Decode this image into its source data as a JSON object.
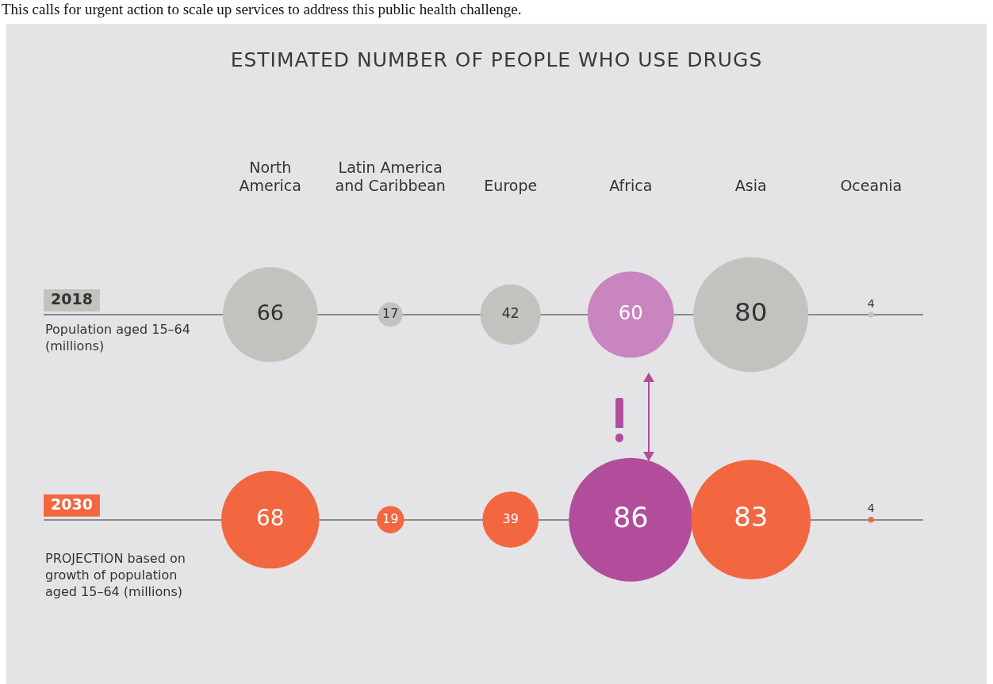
{
  "chart_data": {
    "type": "other",
    "title": "ESTIMATED NUMBER OF PEOPLE WHO USE DRUGS",
    "categories": [
      "North America",
      "Latin America and Caribbean",
      "Europe",
      "Africa",
      "Asia",
      "Oceania"
    ],
    "series": [
      {
        "name": "2018",
        "color": "#c3c2bf",
        "colors": [
          "#c3c2bf",
          "#c3c2bf",
          "#c3c2bf",
          "#c985bd",
          "#c3c2bf",
          "#c3c2bf"
        ],
        "values": [
          66,
          17,
          42,
          60,
          80,
          4
        ]
      },
      {
        "name": "2030",
        "color": "#f26640",
        "colors": [
          "#f26640",
          "#f26640",
          "#f26640",
          "#b24d9c",
          "#f26640",
          "#f26640"
        ],
        "values": [
          68,
          19,
          39,
          86,
          83,
          4
        ]
      }
    ],
    "data_labels": true,
    "legend": false,
    "annotations": [
      "This calls for urgent action to scale up services to address this public health challenge.",
      "Population aged 15–64 (millions)",
      "PROJECTION based on growth of population aged 15–64 (millions)"
    ]
  }
}
